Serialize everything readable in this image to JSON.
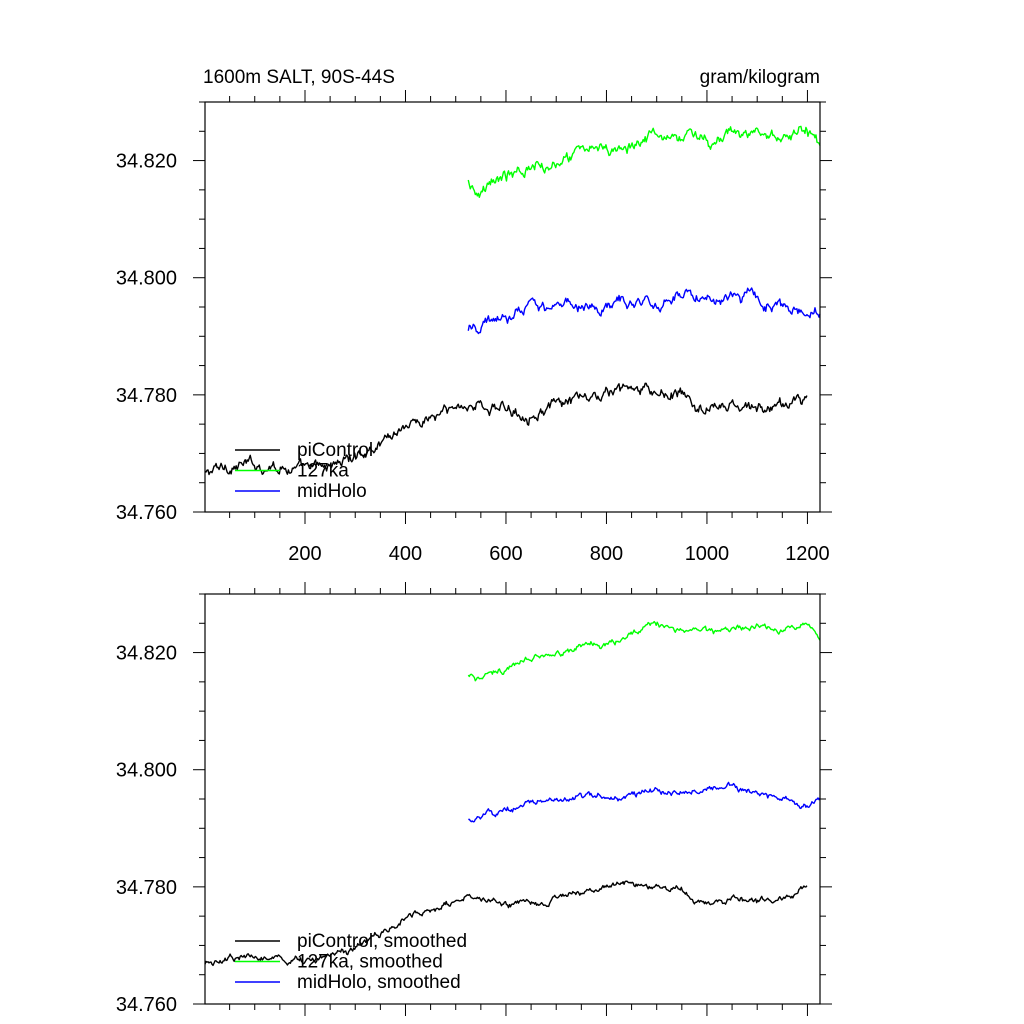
{
  "chart_data": [
    {
      "type": "line",
      "title": "1600m SALT, 90S-44S",
      "units": "gram/kilogram",
      "xlabel": "",
      "ylabel": "",
      "xlim": [
        1,
        1225
      ],
      "ylim": [
        34.76,
        34.83
      ],
      "xticks": [
        200,
        400,
        600,
        800,
        1000,
        1200
      ],
      "yticks": [
        34.76,
        34.78,
        34.8,
        34.82
      ],
      "x_tick_labels": [
        "200",
        "400",
        "600",
        "800",
        "1000",
        "1200"
      ],
      "y_tick_labels": [
        "34.760",
        "34.780",
        "34.800",
        "34.820"
      ],
      "legend": "bottom-left",
      "grid": false,
      "series": [
        {
          "name": "piControl",
          "color": "#000000",
          "noise": 0.0011,
          "x": [
            1,
            50,
            100,
            150,
            200,
            250,
            300,
            350,
            400,
            450,
            480,
            520,
            560,
            600,
            650,
            700,
            750,
            800,
            840,
            900,
            950,
            970,
            1000,
            1050,
            1100,
            1150,
            1200
          ],
          "y": [
            34.7665,
            34.768,
            34.768,
            34.768,
            34.767,
            34.768,
            34.7695,
            34.772,
            34.775,
            34.776,
            34.777,
            34.7785,
            34.778,
            34.7775,
            34.777,
            34.778,
            34.779,
            34.78,
            34.781,
            34.78,
            34.78,
            34.778,
            34.7775,
            34.778,
            34.7775,
            34.778,
            34.78
          ]
        },
        {
          "name": "127ka",
          "color": "#00ff00",
          "noise": 0.0011,
          "x": [
            525,
            540,
            560,
            600,
            650,
            700,
            750,
            800,
            850,
            900,
            950,
            1000,
            1050,
            1100,
            1150,
            1200,
            1225
          ],
          "y": [
            34.8165,
            34.815,
            34.8165,
            34.817,
            34.819,
            34.82,
            34.821,
            34.822,
            34.823,
            34.825,
            34.824,
            34.8235,
            34.824,
            34.8245,
            34.8235,
            34.825,
            34.8225
          ]
        },
        {
          "name": "midHolo",
          "color": "#0000ff",
          "noise": 0.0011,
          "x": [
            525,
            550,
            600,
            650,
            700,
            750,
            800,
            850,
            900,
            950,
            1000,
            1050,
            1100,
            1150,
            1190,
            1225
          ],
          "y": [
            34.791,
            34.792,
            34.793,
            34.795,
            34.795,
            34.7955,
            34.795,
            34.796,
            34.796,
            34.796,
            34.797,
            34.797,
            34.796,
            34.795,
            34.794,
            34.795
          ]
        }
      ]
    },
    {
      "type": "line",
      "title": "",
      "units": "",
      "xlabel": "",
      "ylabel": "",
      "xlim": [
        1,
        1225
      ],
      "ylim": [
        34.76,
        34.83
      ],
      "xticks": [
        200,
        400,
        600,
        800,
        1000,
        1200
      ],
      "yticks": [
        34.76,
        34.78,
        34.8,
        34.82
      ],
      "x_tick_labels": [],
      "y_tick_labels": [
        "34.760",
        "34.780",
        "34.800",
        "34.820"
      ],
      "legend": "bottom-left",
      "grid": false,
      "series": [
        {
          "name": "piControl, smoothed",
          "color": "#000000",
          "noise": 0.0006,
          "x": [
            1,
            50,
            100,
            150,
            200,
            250,
            300,
            350,
            400,
            450,
            480,
            520,
            560,
            600,
            650,
            700,
            750,
            800,
            840,
            900,
            950,
            970,
            1000,
            1050,
            1100,
            1150,
            1200
          ],
          "y": [
            34.7668,
            34.768,
            34.768,
            34.768,
            34.767,
            34.768,
            34.7695,
            34.772,
            34.775,
            34.776,
            34.777,
            34.7785,
            34.778,
            34.7775,
            34.777,
            34.778,
            34.779,
            34.78,
            34.781,
            34.78,
            34.78,
            34.778,
            34.7775,
            34.778,
            34.7775,
            34.778,
            34.78
          ]
        },
        {
          "name": "127ka, smoothed",
          "color": "#00ff00",
          "noise": 0.0006,
          "x": [
            525,
            540,
            560,
            600,
            650,
            700,
            750,
            800,
            850,
            900,
            950,
            1000,
            1050,
            1100,
            1150,
            1200,
            1225
          ],
          "y": [
            34.816,
            34.815,
            34.8165,
            34.817,
            34.819,
            34.82,
            34.821,
            34.822,
            34.823,
            34.825,
            34.824,
            34.8235,
            34.824,
            34.8245,
            34.8235,
            34.8245,
            34.8225
          ]
        },
        {
          "name": "midHolo, smoothed",
          "color": "#0000ff",
          "noise": 0.0006,
          "x": [
            525,
            550,
            600,
            650,
            700,
            750,
            800,
            850,
            900,
            950,
            1000,
            1050,
            1100,
            1150,
            1190,
            1225
          ],
          "y": [
            34.7915,
            34.792,
            34.793,
            34.795,
            34.795,
            34.7955,
            34.795,
            34.796,
            34.796,
            34.796,
            34.797,
            34.797,
            34.796,
            34.795,
            34.794,
            34.795
          ]
        }
      ]
    }
  ]
}
